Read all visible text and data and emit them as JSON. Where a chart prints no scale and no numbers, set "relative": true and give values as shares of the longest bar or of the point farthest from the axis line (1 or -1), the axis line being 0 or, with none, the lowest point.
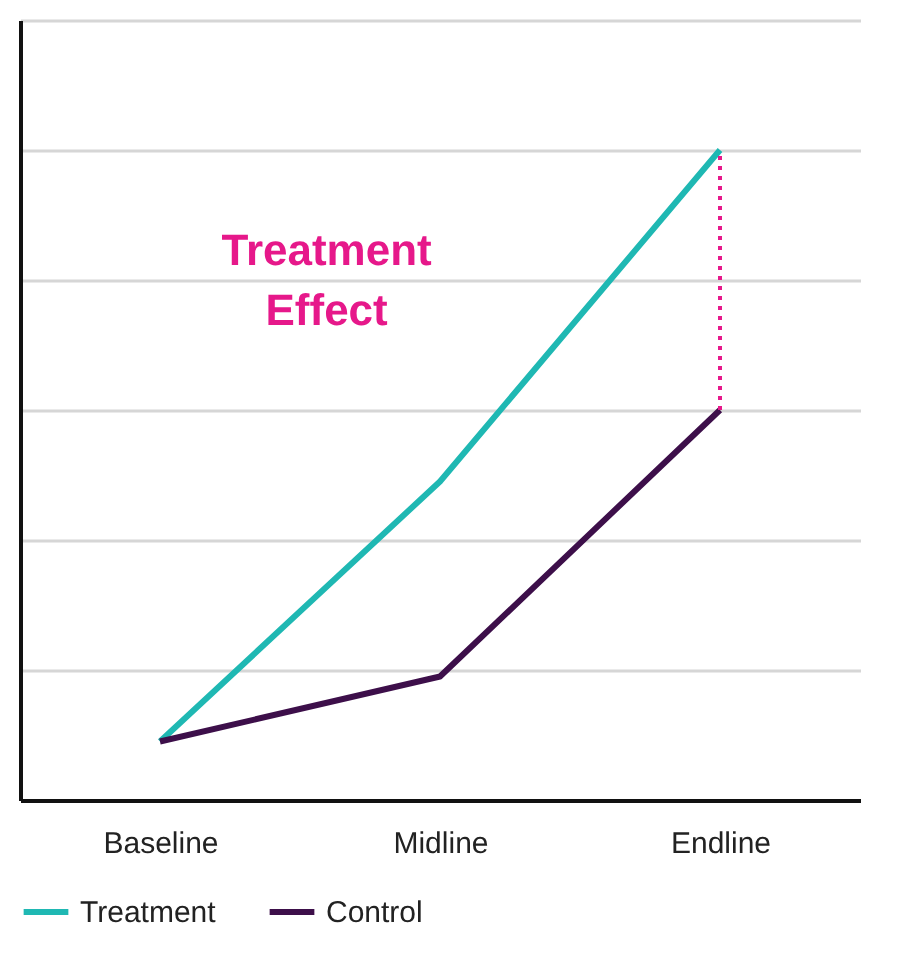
{
  "chart_data": {
    "type": "line",
    "relative": true,
    "categories": [
      "Baseline",
      "Midline",
      "Endline"
    ],
    "series": [
      {
        "name": "Treatment",
        "color": "#1fb8b3",
        "values": [
          0.09,
          0.49,
          1
        ]
      },
      {
        "name": "Control",
        "color": "#3d0f4a",
        "values": [
          0.09,
          0.19,
          0.6
        ]
      },
      {
        "color": "#e6188a",
        "line_style": "dotted",
        "x": [
          "Endline",
          "Endline"
        ],
        "values": [
          0.6,
          1
        ]
      }
    ],
    "annotations": [
      "Treatment Effect"
    ],
    "grid": "y",
    "legend": "bottom",
    "marker": "none",
    "line_style": "solid"
  }
}
